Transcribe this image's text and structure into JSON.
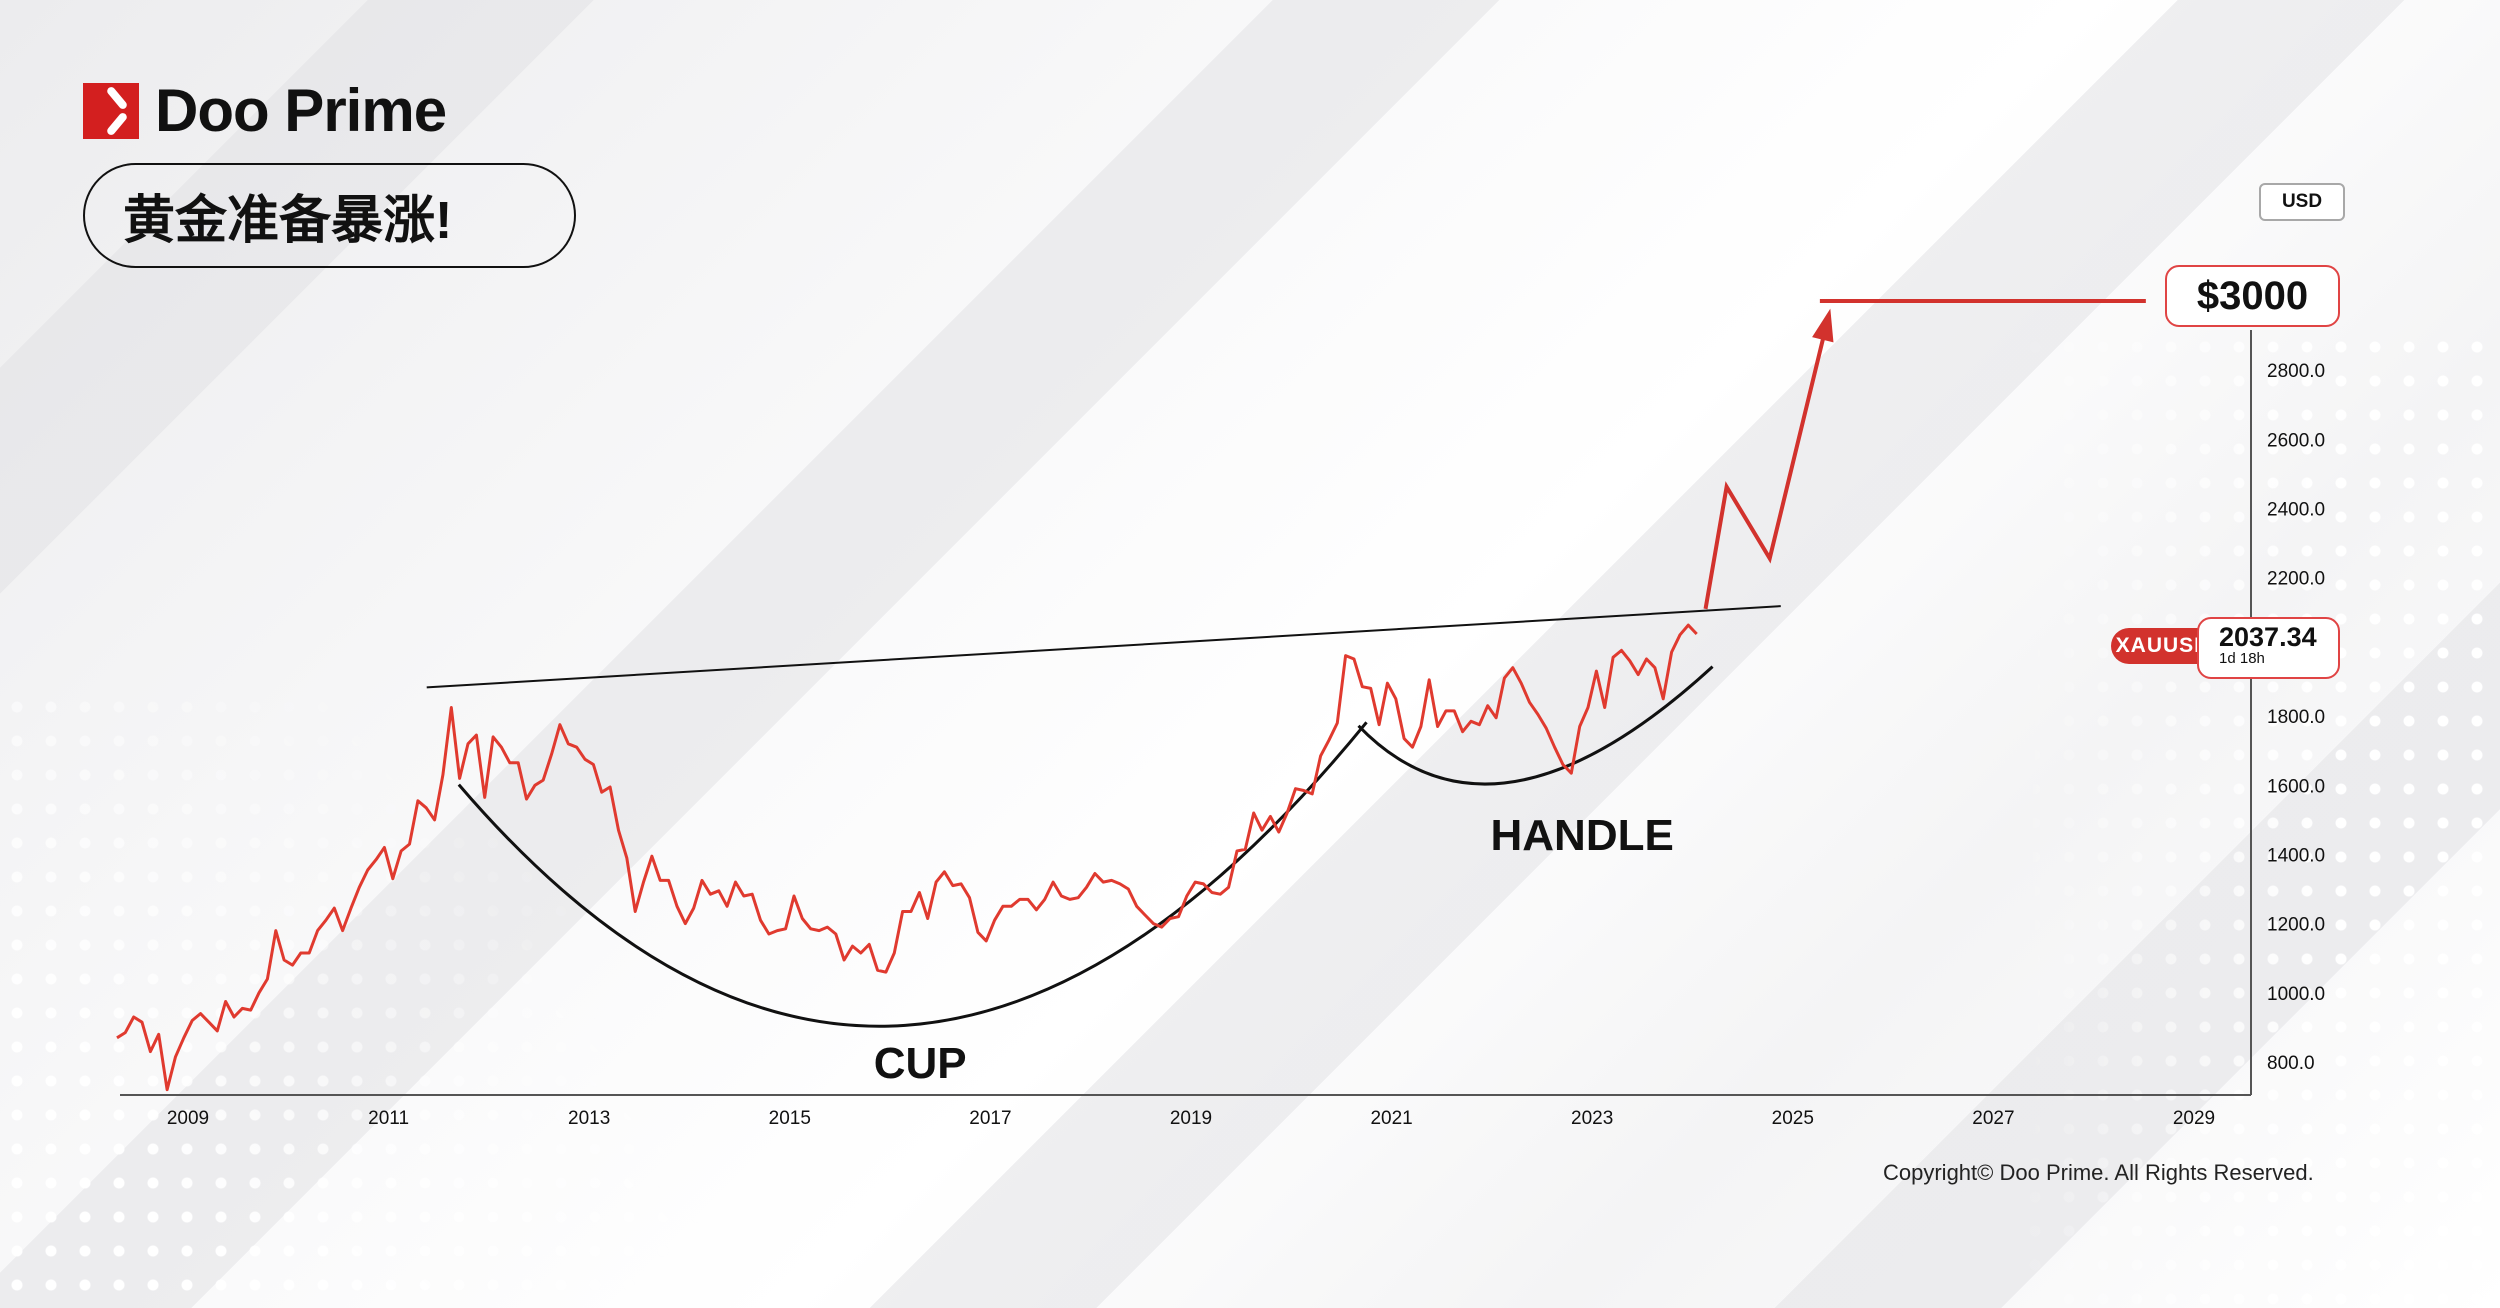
{
  "brand": {
    "name": "Doo Prime",
    "logo_color": "#d31f1f"
  },
  "title": "黄金准备暴涨!",
  "currency_button": "USD",
  "target_label": "$3000",
  "symbol": {
    "name": "XAUUSD",
    "price": "2037.34",
    "countdown": "1d 18h",
    "color": "#d2322d"
  },
  "copyright": "Copyright© Doo Prime. All Rights Reserved.",
  "chart_data": {
    "type": "line",
    "title": "",
    "xlabel": "",
    "ylabel": "",
    "xlim": [
      2008.3,
      2029.9
    ],
    "ylim": [
      700,
      3100
    ],
    "x_ticks": [
      "2009",
      "2011",
      "2013",
      "2015",
      "2017",
      "2019",
      "2021",
      "2023",
      "2025",
      "2027",
      "2029"
    ],
    "y_ticks": [
      "2800.0",
      "2600.0",
      "2400.0",
      "2200.0",
      "1800.0",
      "1600.0",
      "1400.0",
      "1200.0",
      "1000.0",
      "800.0"
    ],
    "grid": false,
    "series": [
      {
        "x_start": "2008-04",
        "interval": "monthly",
        "color": "#e03a2f",
        "values": [
          870,
          885,
          930,
          915,
          830,
          880,
          720,
          815,
          870,
          920,
          940,
          915,
          890,
          975,
          930,
          955,
          950,
          1000,
          1040,
          1180,
          1095,
          1080,
          1115,
          1115,
          1180,
          1210,
          1245,
          1180,
          1245,
          1305,
          1355,
          1385,
          1420,
          1330,
          1410,
          1430,
          1555,
          1535,
          1500,
          1630,
          1825,
          1620,
          1720,
          1745,
          1565,
          1740,
          1710,
          1665,
          1665,
          1560,
          1600,
          1615,
          1690,
          1775,
          1720,
          1710,
          1675,
          1660,
          1580,
          1595,
          1470,
          1390,
          1235,
          1320,
          1395,
          1325,
          1325,
          1250,
          1200,
          1245,
          1325,
          1285,
          1295,
          1250,
          1320,
          1280,
          1285,
          1210,
          1170,
          1180,
          1185,
          1280,
          1215,
          1185,
          1180,
          1190,
          1170,
          1095,
          1135,
          1115,
          1140,
          1065,
          1060,
          1115,
          1235,
          1235,
          1290,
          1215,
          1320,
          1350,
          1310,
          1315,
          1275,
          1175,
          1150,
          1210,
          1250,
          1250,
          1270,
          1270,
          1240,
          1270,
          1320,
          1280,
          1270,
          1275,
          1305,
          1345,
          1320,
          1325,
          1315,
          1300,
          1250,
          1225,
          1200,
          1190,
          1215,
          1220,
          1280,
          1320,
          1315,
          1290,
          1285,
          1305,
          1410,
          1415,
          1520,
          1470,
          1510,
          1465,
          1520,
          1590,
          1585,
          1575,
          1685,
          1730,
          1780,
          1975,
          1965,
          1885,
          1880,
          1775,
          1895,
          1850,
          1735,
          1710,
          1770,
          1905,
          1770,
          1815,
          1815,
          1755,
          1785,
          1775,
          1830,
          1795,
          1910,
          1940,
          1895,
          1840,
          1805,
          1765,
          1710,
          1660,
          1635,
          1770,
          1825,
          1930,
          1825,
          1970,
          1990,
          1960,
          1920,
          1965,
          1940,
          1850,
          1985,
          2035,
          2063,
          2037.34
        ]
      }
    ],
    "annotations": {
      "resistance_line": [
        [
          2011.38,
          1883
        ],
        [
          2024.88,
          2118
        ]
      ],
      "cup": {
        "label": "CUP",
        "start": [
          2011.7,
          1602
        ],
        "bottom": [
          2016.15,
          906
        ],
        "end": [
          2020.75,
          1782
        ]
      },
      "handle": {
        "label": "HANDLE",
        "start": [
          2020.67,
          1772
        ],
        "bottom": [
          2022.23,
          1611
        ],
        "end": [
          2024.2,
          1943
        ]
      },
      "projection": {
        "color": "#d2322d",
        "points": [
          [
            2024.13,
            2110
          ],
          [
            2024.34,
            2463
          ],
          [
            2024.77,
            2256
          ],
          [
            2025.36,
            2961
          ]
        ]
      },
      "target_line": {
        "value": 3000,
        "from": 2025.27,
        "to": 2028.52
      }
    }
  }
}
